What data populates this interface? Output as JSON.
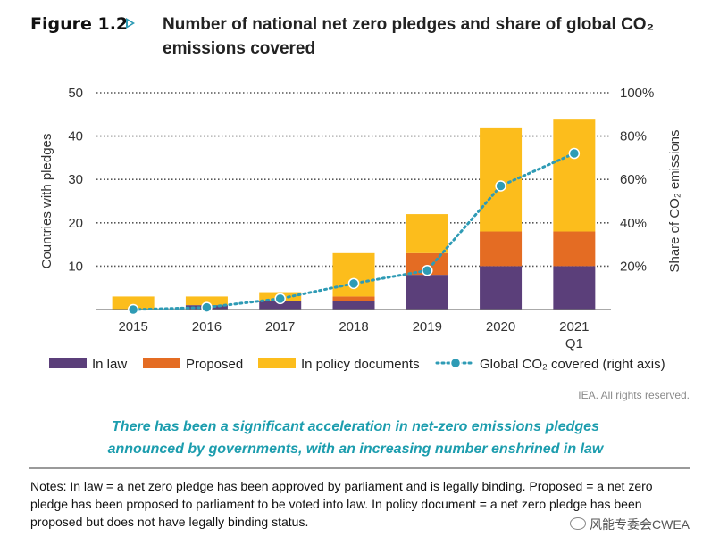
{
  "figure": {
    "number": "Figure 1.2",
    "title_line1": "Number of national net zero pledges and share of global CO₂",
    "title_line2": "emissions covered"
  },
  "chart_data": {
    "type": "bar",
    "stacked": true,
    "categories": [
      "2015",
      "2016",
      "2017",
      "2018",
      "2019",
      "2020",
      "2021"
    ],
    "category_sublabels": [
      "",
      "",
      "",
      "",
      "",
      "",
      "Q1"
    ],
    "series": [
      {
        "name": "In law",
        "color": "#5b3f7a",
        "values": [
          0,
          1,
          2,
          2,
          8,
          10,
          10
        ]
      },
      {
        "name": "Proposed",
        "color": "#e46c23",
        "values": [
          0,
          0,
          0,
          1,
          5,
          8,
          8
        ]
      },
      {
        "name": "In policy documents",
        "color": "#fcbd1c",
        "values": [
          3,
          2,
          2,
          10,
          9,
          24,
          26
        ]
      }
    ],
    "line_series": {
      "name": "Global CO₂ covered (right axis)",
      "color": "#2e9bb5",
      "axis": "right",
      "values": [
        0,
        1,
        5,
        12,
        18,
        57,
        72
      ]
    },
    "ylabel": "Countries with pledges",
    "ylabel_right": "Share of CO₂ emissions",
    "ylim": [
      0,
      50
    ],
    "ylim_right": [
      0,
      100
    ],
    "yticks": [
      "50",
      "40",
      "30",
      "20",
      "10"
    ],
    "yticks_right": [
      "100%",
      "80%",
      "60%",
      "40%",
      "20%"
    ],
    "grid": "dotted",
    "legend_position": "bottom"
  },
  "credit": "IEA. All rights reserved.",
  "caption_line1": "There has been a significant acceleration in net-zero emissions pledges",
  "caption_line2": "announced by governments, with an increasing number enshrined in law",
  "notes_text": "Notes: In law = a net zero pledge has been approved by parliament and is legally binding. Proposed = a net zero pledge has been proposed to parliament to be voted into law. In policy document = a net zero pledge has been proposed but does not have legally binding status.",
  "watermark": "风能专委会CWEA"
}
